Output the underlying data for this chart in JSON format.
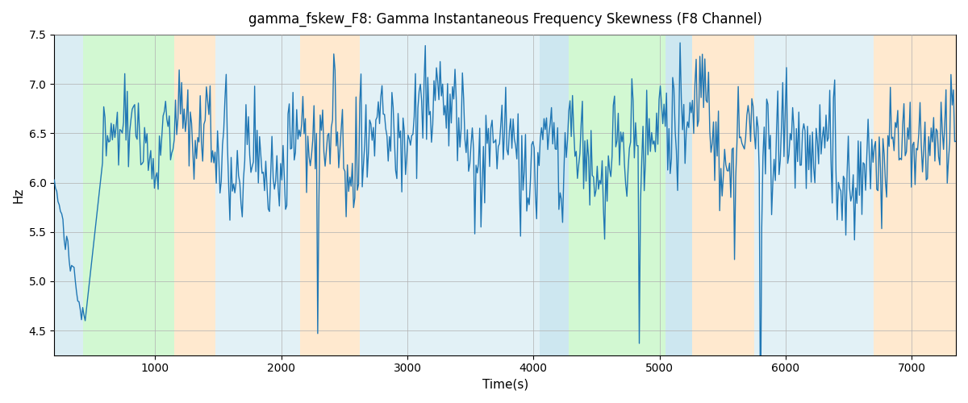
{
  "title": "gamma_fskew_F8: Gamma Instantaneous Frequency Skewness (F8 Channel)",
  "xlabel": "Time(s)",
  "ylabel": "Hz",
  "xlim": [
    200,
    7350
  ],
  "ylim": [
    4.25,
    7.5
  ],
  "yticks": [
    4.5,
    5.0,
    5.5,
    6.0,
    6.5,
    7.0,
    7.5
  ],
  "xticks": [
    1000,
    2000,
    3000,
    4000,
    5000,
    6000,
    7000
  ],
  "line_color": "#2077b4",
  "line_width": 1.0,
  "background_color": "#ffffff",
  "grid_color": "#b0b0b0",
  "bands": [
    {
      "xmin": 200,
      "xmax": 430,
      "color": "#add8e6",
      "alpha": 0.45
    },
    {
      "xmin": 430,
      "xmax": 1150,
      "color": "#90ee90",
      "alpha": 0.4
    },
    {
      "xmin": 1150,
      "xmax": 1480,
      "color": "#ffd8a8",
      "alpha": 0.55
    },
    {
      "xmin": 1480,
      "xmax": 2150,
      "color": "#add8e6",
      "alpha": 0.35
    },
    {
      "xmin": 2150,
      "xmax": 2620,
      "color": "#ffd8a8",
      "alpha": 0.55
    },
    {
      "xmin": 2620,
      "xmax": 4050,
      "color": "#add8e6",
      "alpha": 0.35
    },
    {
      "xmin": 4050,
      "xmax": 4280,
      "color": "#add8e6",
      "alpha": 0.6
    },
    {
      "xmin": 4280,
      "xmax": 5050,
      "color": "#90ee90",
      "alpha": 0.4
    },
    {
      "xmin": 5050,
      "xmax": 5260,
      "color": "#add8e6",
      "alpha": 0.6
    },
    {
      "xmin": 5260,
      "xmax": 5750,
      "color": "#ffd8a8",
      "alpha": 0.55
    },
    {
      "xmin": 5750,
      "xmax": 6530,
      "color": "#add8e6",
      "alpha": 0.35
    },
    {
      "xmin": 6530,
      "xmax": 6700,
      "color": "#add8e6",
      "alpha": 0.35
    },
    {
      "xmin": 6700,
      "xmax": 7350,
      "color": "#ffd8a8",
      "alpha": 0.55
    }
  ],
  "seed": 42,
  "n_points": 730,
  "x_start": 200,
  "x_end": 7350,
  "signal_mean": 6.42,
  "signal_std": 0.28
}
